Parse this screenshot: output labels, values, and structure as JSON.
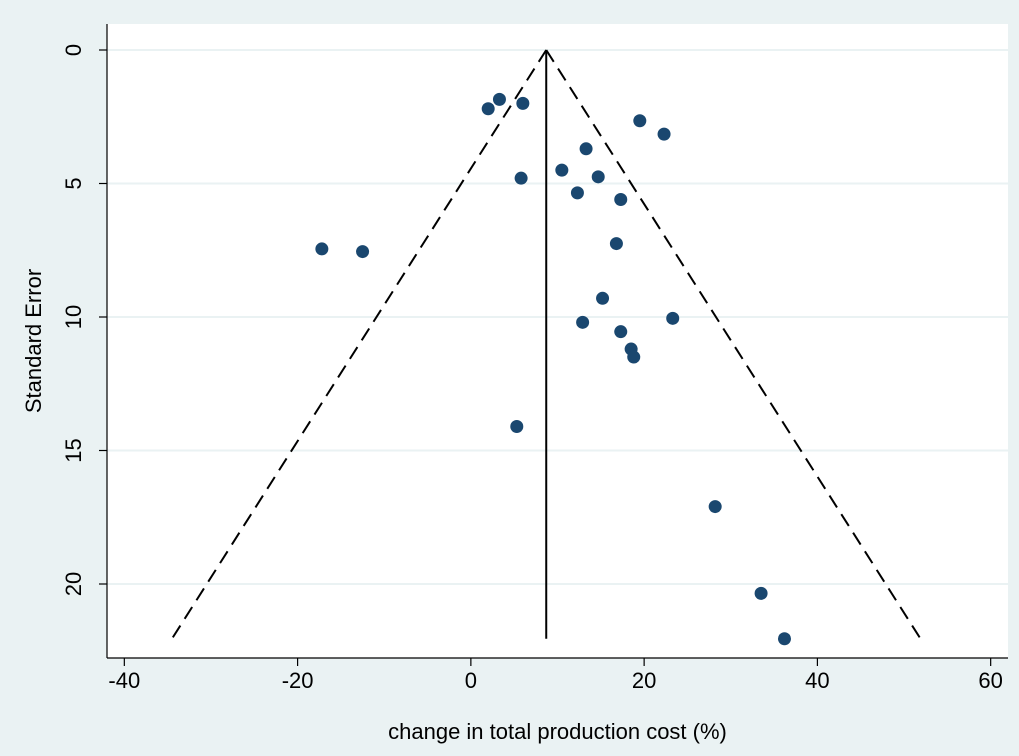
{
  "chart_data": {
    "type": "scatter",
    "title": "",
    "xlabel": "change in total production cost (%)",
    "ylabel": "Standard Error",
    "xlim": [
      -42,
      62
    ],
    "ylim": [
      0,
      22.6
    ],
    "y_reversed": true,
    "x_ticks": [
      -40,
      -20,
      0,
      20,
      40,
      60
    ],
    "x_tick_labels": [
      "-40",
      "-20",
      "0",
      "20",
      "40",
      "60"
    ],
    "y_ticks": [
      0,
      5,
      10,
      15,
      20
    ],
    "y_tick_labels": [
      "0",
      "5",
      "10",
      "15",
      "20"
    ],
    "grid": "horizontal",
    "legend": "none",
    "colors": {
      "background": "#eaf2f3",
      "plot_background": "#ffffff",
      "marker": "#1a476f",
      "gridline": "#eaf2f3",
      "line": "#000000"
    },
    "pooled_estimate": 8.7,
    "funnel": {
      "apex": [
        8.7,
        0
      ],
      "left_base": [
        -34.5,
        22.05
      ],
      "right_base": [
        51.9,
        22.05
      ],
      "vertical_line": [
        [
          8.7,
          0
        ],
        [
          8.7,
          22.05
        ]
      ]
    },
    "points": [
      {
        "x": 2.0,
        "y": 2.2
      },
      {
        "x": 3.3,
        "y": 1.85
      },
      {
        "x": 6.0,
        "y": 2.0
      },
      {
        "x": 19.5,
        "y": 2.65
      },
      {
        "x": 22.3,
        "y": 3.15
      },
      {
        "x": 13.3,
        "y": 3.7
      },
      {
        "x": 10.5,
        "y": 4.5
      },
      {
        "x": 14.7,
        "y": 4.75
      },
      {
        "x": 5.8,
        "y": 4.8
      },
      {
        "x": 12.3,
        "y": 5.35
      },
      {
        "x": 17.3,
        "y": 5.6
      },
      {
        "x": 16.8,
        "y": 7.25
      },
      {
        "x": -17.2,
        "y": 7.45
      },
      {
        "x": -12.5,
        "y": 7.55
      },
      {
        "x": 15.2,
        "y": 9.3
      },
      {
        "x": 23.3,
        "y": 10.05
      },
      {
        "x": 12.9,
        "y": 10.2
      },
      {
        "x": 17.3,
        "y": 10.55
      },
      {
        "x": 18.5,
        "y": 11.2
      },
      {
        "x": 18.8,
        "y": 11.5
      },
      {
        "x": 5.3,
        "y": 14.1
      },
      {
        "x": 28.2,
        "y": 17.1
      },
      {
        "x": 33.5,
        "y": 20.35
      },
      {
        "x": 36.2,
        "y": 22.05
      }
    ]
  }
}
